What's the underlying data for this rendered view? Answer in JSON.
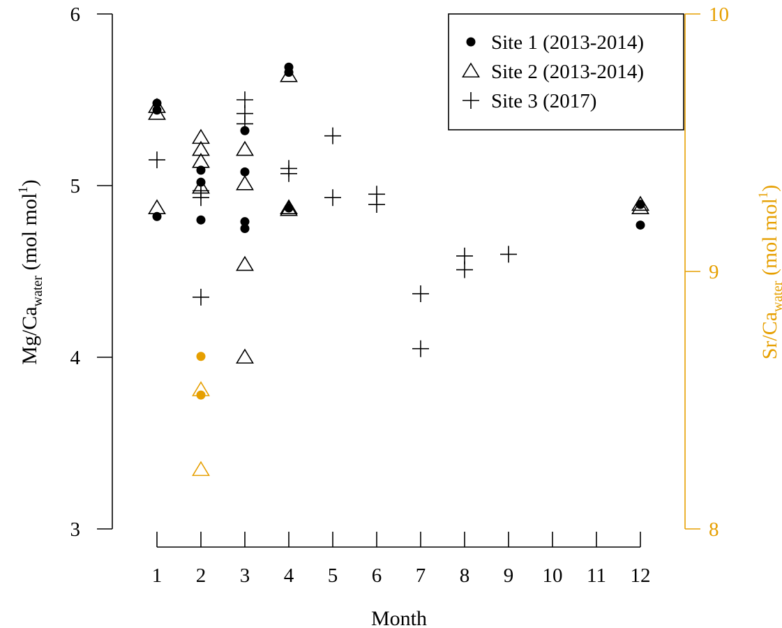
{
  "chart_data": {
    "type": "scatter",
    "colors": {
      "primary": "#000000",
      "secondary_axis": "#e69f00"
    },
    "x_axis": {
      "label": "Month",
      "range": [
        1,
        12
      ],
      "ticks": [
        1,
        2,
        3,
        4,
        5,
        6,
        7,
        8,
        9,
        10,
        11,
        12
      ],
      "tick_labels": [
        "1",
        "2",
        "3",
        "4",
        "5",
        "6",
        "7",
        "8",
        "9",
        "10",
        "11",
        "12"
      ]
    },
    "y_axis_left": {
      "label_main": "Mg/Ca",
      "label_sub": "water",
      "label_unit_open": " (mol mol",
      "label_unit_sup": "1",
      "label_unit_close": ")",
      "range": [
        3,
        6
      ],
      "ticks": [
        3,
        4,
        5,
        6
      ],
      "tick_labels": [
        "3",
        "4",
        "5",
        "6"
      ]
    },
    "y_axis_right": {
      "label_main": "Sr/Ca",
      "label_sub": "water",
      "label_unit_open": " (mol mol",
      "label_unit_sup": "1",
      "label_unit_close": ")",
      "range": [
        8,
        10
      ],
      "ticks": [
        8,
        9,
        10
      ],
      "tick_labels": [
        "8",
        "9",
        "10"
      ],
      "color": "#e69f00"
    },
    "legend": {
      "position": "top-right",
      "entries": [
        {
          "label": "Site 1 (2013-2014)",
          "marker": "circle"
        },
        {
          "label": "Site 2 (2013-2014)",
          "marker": "triangle"
        },
        {
          "label": "Site 3 (2017)",
          "marker": "plus"
        }
      ]
    },
    "series": [
      {
        "name": "Site 1 (2013-2014)",
        "marker": "circle",
        "axis": "left",
        "points": [
          {
            "x": 1,
            "y": 5.48
          },
          {
            "x": 1,
            "y": 5.44
          },
          {
            "x": 1,
            "y": 4.82
          },
          {
            "x": 2,
            "y": 5.09
          },
          {
            "x": 2,
            "y": 5.02
          },
          {
            "x": 2,
            "y": 4.8
          },
          {
            "x": 3,
            "y": 5.32
          },
          {
            "x": 3,
            "y": 5.08
          },
          {
            "x": 3,
            "y": 4.79
          },
          {
            "x": 3,
            "y": 4.75
          },
          {
            "x": 4,
            "y": 5.69
          },
          {
            "x": 4,
            "y": 5.66
          },
          {
            "x": 4,
            "y": 4.87
          },
          {
            "x": 12,
            "y": 4.89
          },
          {
            "x": 12,
            "y": 4.77
          }
        ]
      },
      {
        "name": "Site 2 (2013-2014)",
        "marker": "triangle",
        "axis": "left",
        "points": [
          {
            "x": 1,
            "y": 5.46
          },
          {
            "x": 1,
            "y": 5.42
          },
          {
            "x": 1,
            "y": 4.87
          },
          {
            "x": 2,
            "y": 5.28
          },
          {
            "x": 2,
            "y": 5.21
          },
          {
            "x": 2,
            "y": 5.14
          },
          {
            "x": 2,
            "y": 4.99
          },
          {
            "x": 3,
            "y": 5.21
          },
          {
            "x": 3,
            "y": 5.01
          },
          {
            "x": 3,
            "y": 4.54
          },
          {
            "x": 3,
            "y": 4.0
          },
          {
            "x": 4,
            "y": 5.64
          },
          {
            "x": 4,
            "y": 4.87
          },
          {
            "x": 4,
            "y": 4.86
          },
          {
            "x": 12,
            "y": 4.89
          },
          {
            "x": 12,
            "y": 4.87
          }
        ]
      },
      {
        "name": "Site 3 (2017)",
        "marker": "plus",
        "axis": "left",
        "points": [
          {
            "x": 1,
            "y": 5.15
          },
          {
            "x": 2,
            "y": 4.97
          },
          {
            "x": 2,
            "y": 4.93
          },
          {
            "x": 2,
            "y": 4.35
          },
          {
            "x": 3,
            "y": 5.5
          },
          {
            "x": 3,
            "y": 5.42
          },
          {
            "x": 3,
            "y": 5.36
          },
          {
            "x": 4,
            "y": 5.1
          },
          {
            "x": 4,
            "y": 5.07
          },
          {
            "x": 5,
            "y": 5.29
          },
          {
            "x": 5,
            "y": 4.93
          },
          {
            "x": 6,
            "y": 4.95
          },
          {
            "x": 6,
            "y": 4.89
          },
          {
            "x": 7,
            "y": 4.37
          },
          {
            "x": 7,
            "y": 4.05
          },
          {
            "x": 8,
            "y": 4.59
          },
          {
            "x": 8,
            "y": 4.51
          },
          {
            "x": 9,
            "y": 4.6
          }
        ]
      },
      {
        "name": "",
        "marker": "circle",
        "axis": "right",
        "color": "#e69f00",
        "points": [
          {
            "x": 2,
            "y": 8.67
          },
          {
            "x": 2,
            "y": 8.52
          }
        ]
      },
      {
        "name": "",
        "marker": "triangle",
        "axis": "right",
        "color": "#e69f00",
        "points": [
          {
            "x": 2,
            "y": 8.54
          },
          {
            "x": 2,
            "y": 8.23
          }
        ]
      }
    ]
  }
}
